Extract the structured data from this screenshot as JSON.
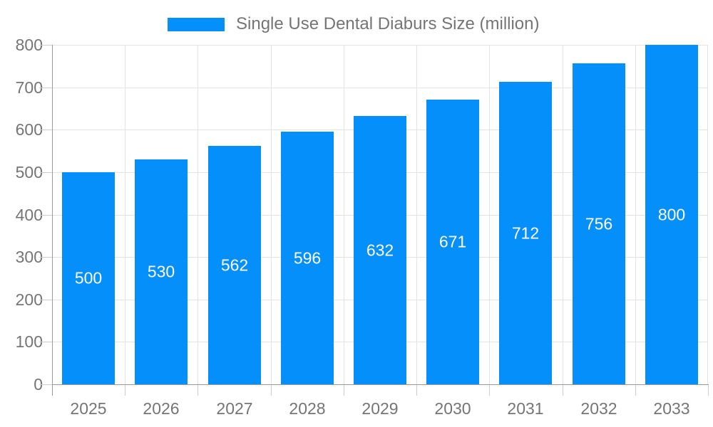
{
  "chart_data": {
    "type": "bar",
    "title": "Single Use Dental Diaburs Size (million)",
    "legend_entries": [
      "Single Use Dental Diaburs Size (million)"
    ],
    "legend_position": "top",
    "categories": [
      "2025",
      "2026",
      "2027",
      "2028",
      "2029",
      "2030",
      "2031",
      "2032",
      "2033"
    ],
    "series": [
      {
        "name": "Single Use Dental Diaburs Size (million)",
        "values": [
          500,
          530,
          562,
          596,
          632,
          671,
          712,
          756,
          800
        ]
      }
    ],
    "values": [
      500,
      530,
      562,
      596,
      632,
      671,
      712,
      756,
      800
    ],
    "xlabel": "",
    "ylabel": "",
    "ylim": [
      0,
      800
    ],
    "yticks": [
      0,
      100,
      200,
      300,
      400,
      500,
      600,
      700,
      800
    ],
    "grid": true
  },
  "colors": {
    "bar": "#058ffa",
    "value_label": "#ffffff",
    "gridline": "#e3e3e3",
    "tick_line": "#cccccc",
    "axis_line": "#999999",
    "text": "#757575",
    "background": "#ffffff"
  }
}
